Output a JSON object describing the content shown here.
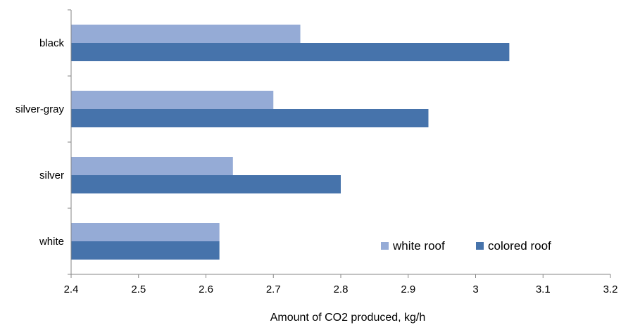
{
  "chart_data": {
    "type": "bar",
    "orientation": "horizontal",
    "categories": [
      "black",
      "silver-gray",
      "silver",
      "white"
    ],
    "series": [
      {
        "name": "white roof",
        "values": [
          2.74,
          2.7,
          2.64,
          2.62
        ],
        "color": "#95abd6"
      },
      {
        "name": "colored roof",
        "values": [
          3.05,
          2.93,
          2.8,
          2.62
        ],
        "color": "#4673ab"
      }
    ],
    "xticks": [
      "2.4",
      "2.5",
      "2.6",
      "2.7",
      "2.8",
      "2.9",
      "3",
      "3.1",
      "3.2"
    ],
    "xlim": [
      2.4,
      3.2
    ],
    "xlabel": "Amount of CO2 produced, kg/h",
    "ylabel": "",
    "title": "",
    "grid": false,
    "legend": "bottom-right, inside plot"
  }
}
